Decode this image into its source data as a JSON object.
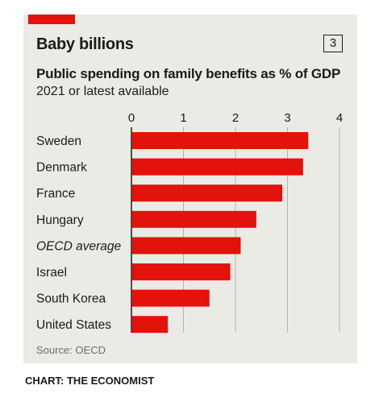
{
  "chart_data": {
    "type": "bar",
    "orientation": "horizontal",
    "title": "Baby billions",
    "badge": "3",
    "subtitle": "Public spending on family benefits as % of GDP",
    "subsubtitle": "2021 or latest available",
    "categories": [
      "Sweden",
      "Denmark",
      "France",
      "Hungary",
      "OECD average",
      "Israel",
      "South Korea",
      "United States"
    ],
    "italic_categories": [
      "OECD average"
    ],
    "values": [
      3.4,
      3.3,
      2.9,
      2.4,
      2.1,
      1.9,
      1.5,
      0.7
    ],
    "xlim": [
      0,
      4
    ],
    "xticks": [
      0,
      1,
      2,
      3,
      4
    ],
    "grid": true,
    "bar_color": "#e3120b",
    "source": "Source: OECD"
  },
  "colors": {
    "accent": "#e3120b",
    "panel": "#ebebe6",
    "gridline": "#b3b3b3"
  },
  "credit": "CHART: THE ECONOMIST"
}
